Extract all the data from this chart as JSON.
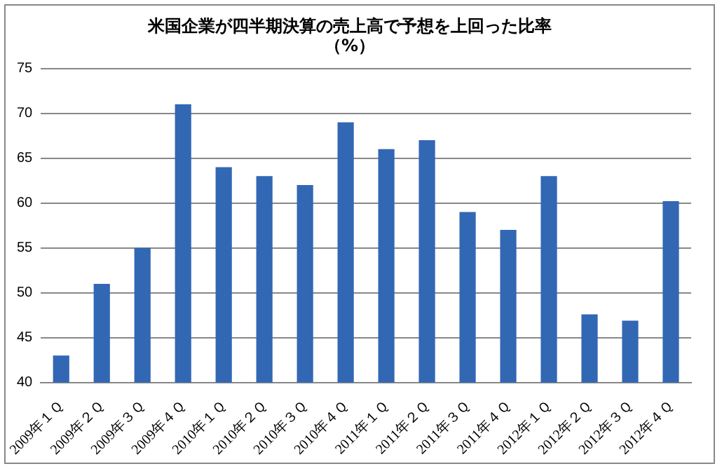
{
  "chart_data": {
    "type": "bar",
    "title": [
      "米国企業が四半期決算の売上高で予想を上回った比率",
      "（%）"
    ],
    "categories": [
      "2009年１Ｑ",
      "2009年２Ｑ",
      "2009年３Ｑ",
      "2009年４Ｑ",
      "2010年１Ｑ",
      "2010年２Ｑ",
      "2010年３Ｑ",
      "2010年４Ｑ",
      "2011年１Ｑ",
      "2011年２Ｑ",
      "2011年３Ｑ",
      "2011年４Ｑ",
      "2012年１Ｑ",
      "2012年２Ｑ",
      "2012年３Ｑ",
      "2012年４Ｑ"
    ],
    "values": [
      43,
      51,
      55,
      71,
      64,
      63,
      62,
      69,
      66,
      67,
      59,
      57,
      63,
      47.6,
      46.9,
      60.2
    ],
    "color": "#3267b4",
    "ylim": [
      40,
      75
    ],
    "yticks": [
      40,
      45,
      50,
      55,
      60,
      65,
      70,
      75
    ],
    "grid": "y",
    "legend": false
  }
}
